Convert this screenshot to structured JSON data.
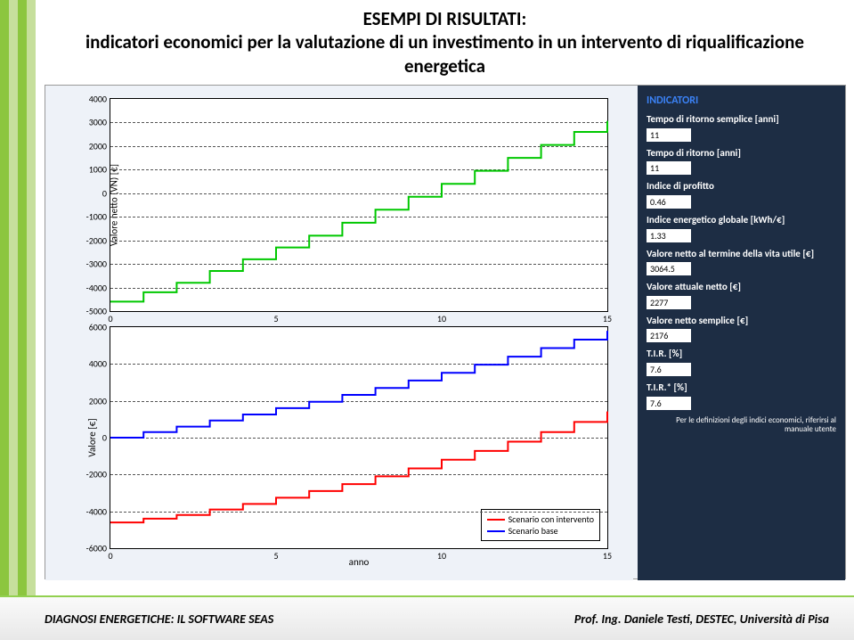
{
  "stripes": [
    "#8cc63f",
    "#c6df9c",
    "#8cc63f",
    "#c6df9c"
  ],
  "title": {
    "line1": "ESEMPI DI RISULTATI:",
    "line2": "indicatori economici per la valutazione di un investimento in un intervento di riqualificazione energetica",
    "fontsize": 21
  },
  "chart_bg": "#eef2f8",
  "panel_bg": "#1d2d44",
  "chart_top": {
    "type": "step-line",
    "ylabel": "Valore netto (VN) [€]",
    "ylim": [
      -5000,
      4000
    ],
    "yticks": [
      -5000,
      -4000,
      -3000,
      -2000,
      -1000,
      0,
      1000,
      2000,
      3000,
      4000
    ],
    "xlim": [
      0,
      15
    ],
    "xticks": [
      0,
      5,
      10,
      15
    ],
    "grid_color": "#555555",
    "series": [
      {
        "name": "VN",
        "color": "#00c800",
        "linewidth": 2,
        "x": [
          0,
          1,
          2,
          3,
          4,
          5,
          6,
          7,
          8,
          9,
          10,
          11,
          12,
          13,
          14,
          15
        ],
        "y": [
          -4600,
          -4200,
          -3800,
          -3300,
          -2800,
          -2300,
          -1800,
          -1250,
          -700,
          -150,
          400,
          950,
          1500,
          2050,
          2600,
          3064
        ]
      }
    ]
  },
  "chart_bottom": {
    "type": "step-line",
    "ylabel": "Valore [€]",
    "xlabel": "anno",
    "ylim": [
      -6000,
      6000
    ],
    "yticks": [
      -6000,
      -4000,
      -2000,
      0,
      2000,
      4000,
      6000
    ],
    "xlim": [
      0,
      15
    ],
    "xticks": [
      0,
      5,
      10,
      15
    ],
    "grid_color": "#555555",
    "legend": {
      "position": "lower right",
      "items": [
        {
          "label": "Scenario con intervento",
          "color": "#ff0000"
        },
        {
          "label": "Scenario base",
          "color": "#0000ff"
        }
      ]
    },
    "series": [
      {
        "name": "Scenario base",
        "color": "#0000ff",
        "linewidth": 2,
        "x": [
          0,
          1,
          2,
          3,
          4,
          5,
          6,
          7,
          8,
          9,
          10,
          11,
          12,
          13,
          14,
          15
        ],
        "y": [
          0,
          300,
          600,
          930,
          1260,
          1600,
          1950,
          2320,
          2700,
          3100,
          3520,
          3960,
          4400,
          4860,
          5320,
          5800
        ]
      },
      {
        "name": "Scenario con intervento",
        "color": "#ff0000",
        "linewidth": 2,
        "x": [
          0,
          1,
          2,
          3,
          4,
          5,
          6,
          7,
          8,
          9,
          10,
          11,
          12,
          13,
          14,
          15
        ],
        "y": [
          -4600,
          -4400,
          -4200,
          -3900,
          -3600,
          -3260,
          -2900,
          -2520,
          -2100,
          -1670,
          -1200,
          -720,
          -220,
          300,
          850,
          1420
        ]
      }
    ]
  },
  "indicators": {
    "header": "INDICATORI",
    "items": [
      {
        "label": "Tempo di ritorno semplice [anni]",
        "value": "11"
      },
      {
        "label": "Tempo di ritorno [anni]",
        "value": "11"
      },
      {
        "label": "Indice di profitto",
        "value": "0.46"
      },
      {
        "label": "Indice energetico globale [kWh/€]",
        "value": "1.33"
      },
      {
        "label": "Valore netto al termine della vita utile [€]",
        "value": "3064.5"
      },
      {
        "label": "Valore attuale netto [€]",
        "value": "2277"
      },
      {
        "label": "Valore netto semplice [€]",
        "value": "2176"
      },
      {
        "label": "T.I.R. [%]",
        "value": "7.6"
      },
      {
        "label": "T.I.R.* [%]",
        "value": "7.6"
      }
    ],
    "note": "Per le definizioni degli indici economici, riferirsi al manuale utente"
  },
  "footer": {
    "left": "DIAGNOSI ENERGETICHE: IL SOFTWARE SEAS",
    "right": "Prof. Ing. Daniele Testi, DESTEC, Università di Pisa"
  }
}
